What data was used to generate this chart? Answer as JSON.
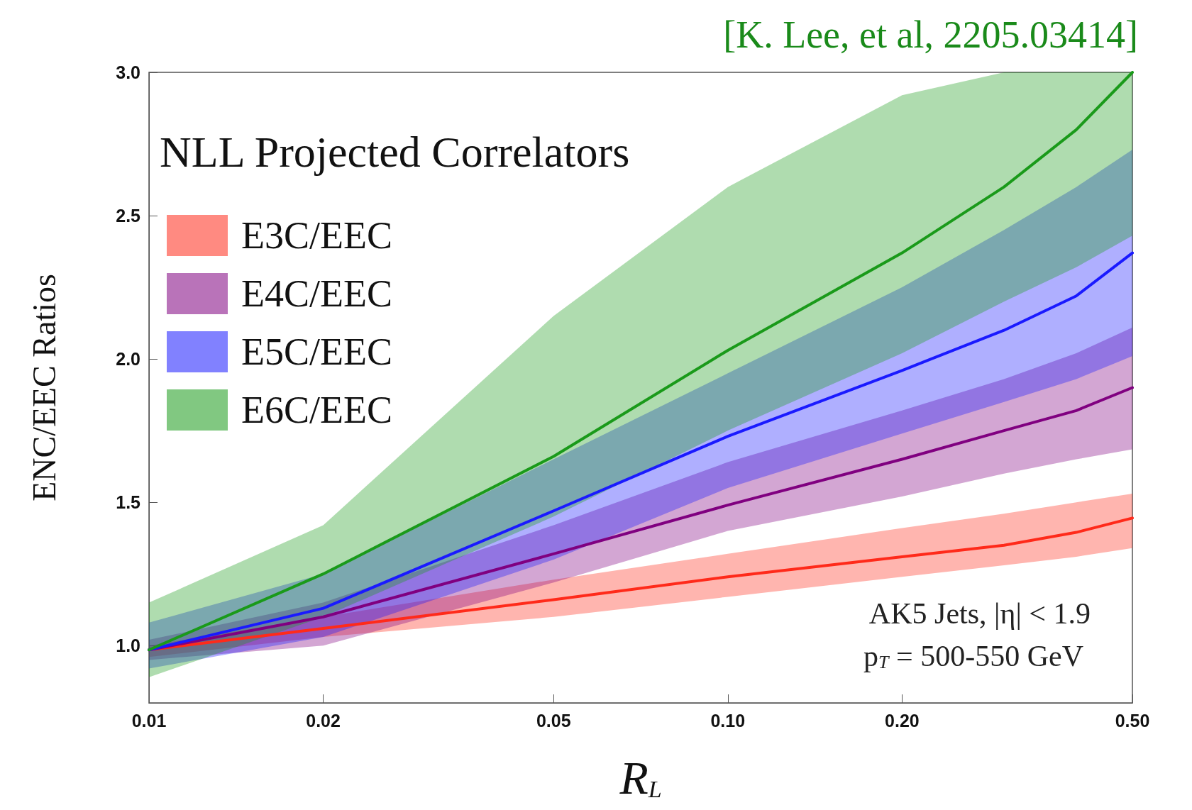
{
  "chart_data": {
    "type": "line",
    "title": "NLL Projected Correlators",
    "xlabel": "R$_{L}$",
    "ylabel": "ENC/EEC Ratios",
    "annotations": [
      "[K. Lee, et al, 2205.03414]",
      "AK5 Jets, |η| < 1.9",
      "p$_{T}$ = 500-550 GeV"
    ],
    "x": [
      0.01,
      0.02,
      0.05,
      0.1,
      0.2,
      0.3,
      0.4,
      0.5
    ],
    "series": [
      {
        "name": "E3C/EEC",
        "color": "#ff2a1a",
        "values": [
          0.985,
          1.06,
          1.16,
          1.24,
          1.31,
          1.35,
          1.395,
          1.445
        ],
        "lower": [
          0.96,
          1.03,
          1.1,
          1.17,
          1.24,
          1.28,
          1.31,
          1.34
        ],
        "upper": [
          1.0,
          1.1,
          1.23,
          1.32,
          1.41,
          1.46,
          1.5,
          1.53
        ]
      },
      {
        "name": "E4C/EEC",
        "color": "#800080",
        "values": [
          0.985,
          1.1,
          1.32,
          1.49,
          1.65,
          1.75,
          1.82,
          1.9
        ],
        "lower": [
          0.95,
          1.0,
          1.22,
          1.4,
          1.52,
          1.6,
          1.65,
          1.685
        ],
        "upper": [
          1.02,
          1.15,
          1.42,
          1.64,
          1.82,
          1.93,
          2.02,
          2.11
        ]
      },
      {
        "name": "E5C/EEC",
        "color": "#1a1aff",
        "values": [
          0.985,
          1.13,
          1.47,
          1.73,
          1.96,
          2.1,
          2.22,
          2.37
        ],
        "lower": [
          0.92,
          1.03,
          1.3,
          1.55,
          1.74,
          1.85,
          1.93,
          2.01
        ],
        "upper": [
          1.08,
          1.25,
          1.65,
          1.95,
          2.25,
          2.45,
          2.6,
          2.73
        ]
      },
      {
        "name": "E6C/EEC",
        "color": "#1a9a1a",
        "values": [
          0.985,
          1.25,
          1.66,
          2.03,
          2.37,
          2.6,
          2.8,
          3.0
        ],
        "lower": [
          0.89,
          1.1,
          1.45,
          1.75,
          2.02,
          2.2,
          2.32,
          2.43
        ],
        "upper": [
          1.15,
          1.42,
          2.15,
          2.6,
          2.92,
          3.0,
          3.0,
          3.0
        ]
      }
    ],
    "xlim": [
      0.01,
      0.5
    ],
    "xticks": [
      0.01,
      0.02,
      0.05,
      {
        "value": 0.1,
        "label": "0.10"
      },
      {
        "value": 0.2,
        "label": "0.20"
      },
      {
        "value": 0.5,
        "label": "0.50"
      }
    ],
    "ylim": [
      0.8,
      3.0
    ],
    "yticks": [
      {
        "value": 1,
        "label": "1.0"
      },
      1.5,
      {
        "value": 2,
        "label": "2.0"
      },
      2.5,
      {
        "value": 3,
        "label": "3.0"
      }
    ],
    "log": "x",
    "grid": false,
    "legend": "top left",
    "marker": "none",
    "line_style": "solid"
  }
}
